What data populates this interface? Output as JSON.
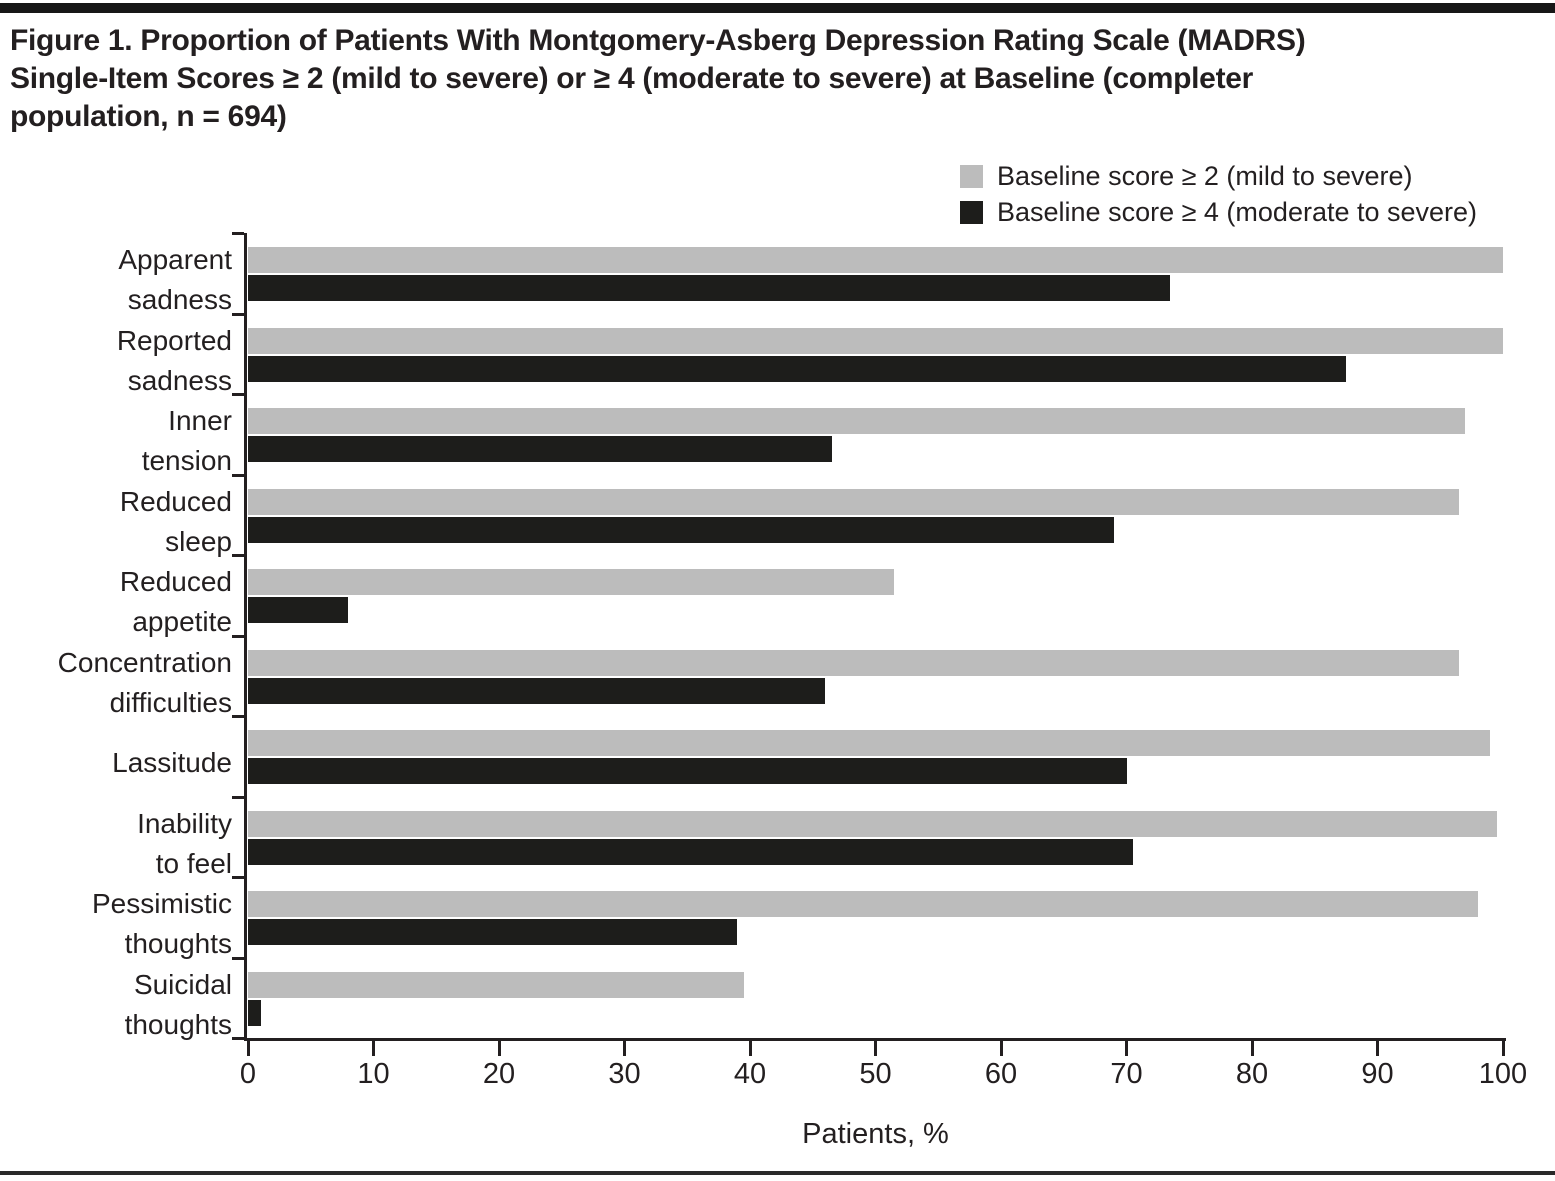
{
  "page": {
    "title_lines": [
      "Figure 1. Proportion of Patients With Montgomery-Asberg Depression Rating Scale (MADRS)",
      "Single-Item Scores ≥ 2 (mild to severe) or ≥ 4 (moderate to severe) at Baseline (completer",
      "population, n = 694)"
    ]
  },
  "chart_data": {
    "type": "bar",
    "orientation": "horizontal",
    "categories": [
      "Apparent sadness",
      "Reported sadness",
      "Inner tension",
      "Reduced sleep",
      "Reduced appetite",
      "Concentration difficulties",
      "Lassitude",
      "Inability to feel",
      "Pessimistic thoughts",
      "Suicidal thoughts"
    ],
    "category_label_lines": [
      [
        "Apparent",
        "sadness"
      ],
      [
        "Reported",
        "sadness"
      ],
      [
        "Inner",
        "tension"
      ],
      [
        "Reduced",
        "sleep"
      ],
      [
        "Reduced",
        "appetite"
      ],
      [
        "Concentration",
        "difficulties"
      ],
      [
        "Lassitude"
      ],
      [
        "Inability",
        "to feel"
      ],
      [
        "Pessimistic",
        "thoughts"
      ],
      [
        "Suicidal",
        "thoughts"
      ]
    ],
    "series": [
      {
        "name": "Baseline score ≥ 2 (mild to severe)",
        "color": "#bcbcbc",
        "values": [
          100,
          100,
          97,
          96.5,
          51.5,
          96.5,
          99,
          99.5,
          98,
          39.5
        ]
      },
      {
        "name": "Baseline score ≥ 4 (moderate to severe)",
        "color": "#1d1d1b",
        "values": [
          73.5,
          87.5,
          46.5,
          69,
          8,
          46,
          70,
          70.5,
          39,
          1
        ]
      }
    ],
    "xlabel": "Patients, %",
    "xlim": [
      0,
      100
    ],
    "xticks": [
      0,
      10,
      20,
      30,
      40,
      50,
      60,
      70,
      80,
      90,
      100
    ],
    "legend_position": "top-right",
    "grid": false
  }
}
